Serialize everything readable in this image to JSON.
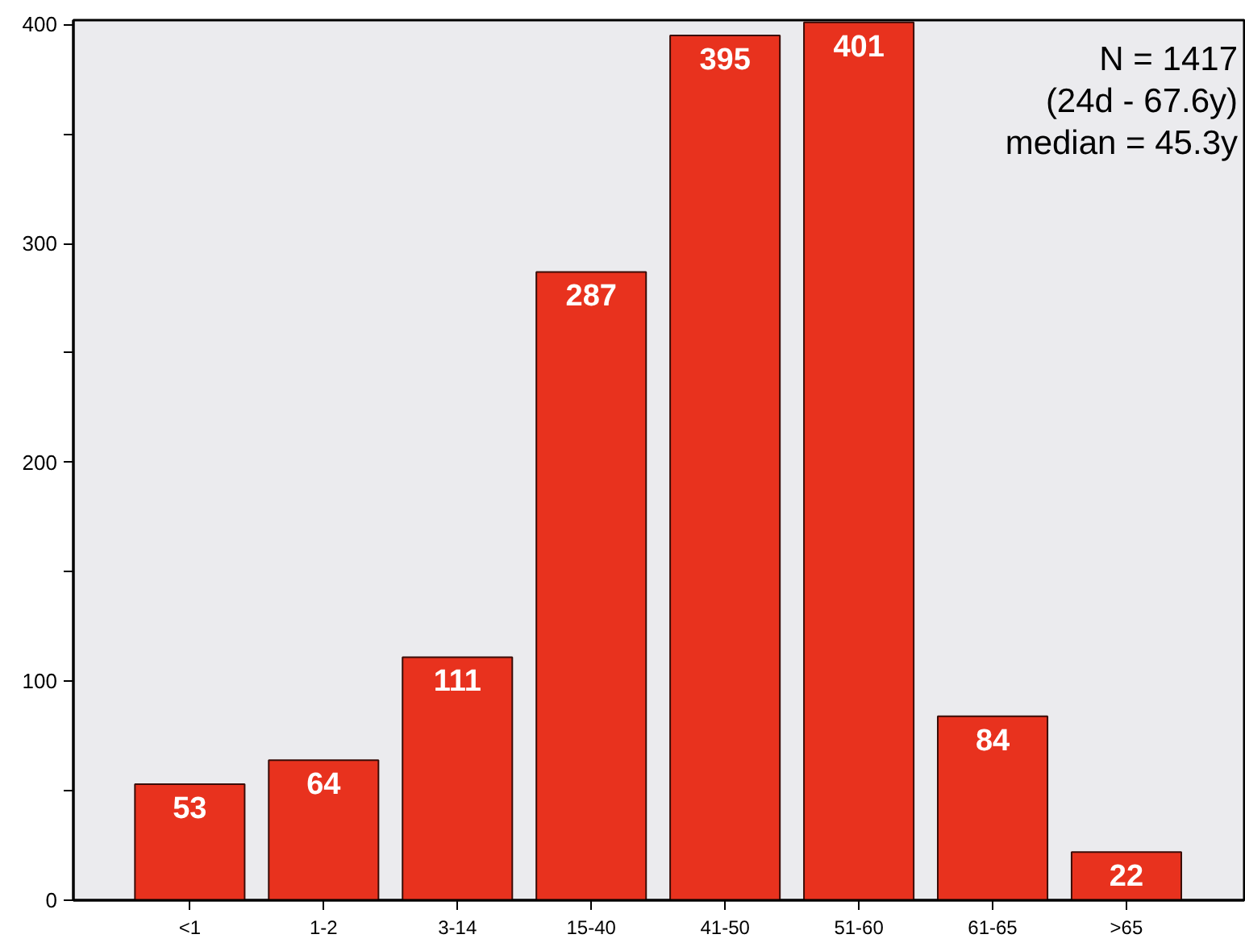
{
  "chart_data": {
    "type": "bar",
    "categories": [
      "<1",
      "1-2",
      "3-14",
      "15-40",
      "41-50",
      "51-60",
      "61-65",
      ">65"
    ],
    "values": [
      53,
      64,
      111,
      287,
      395,
      401,
      84,
      22
    ],
    "color": "#e8321e",
    "ylim": [
      0,
      402
    ],
    "yticks": [
      0,
      {
        "value": 50,
        "label": null
      },
      100,
      {
        "value": 150,
        "label": null
      },
      200,
      {
        "value": 250,
        "label": null
      },
      300,
      {
        "value": 350,
        "label": null
      },
      400
    ],
    "data_labels": true,
    "annotations": [
      "N = 1417",
      "(24d - 67.6y)",
      "median = 45.3y"
    ]
  }
}
